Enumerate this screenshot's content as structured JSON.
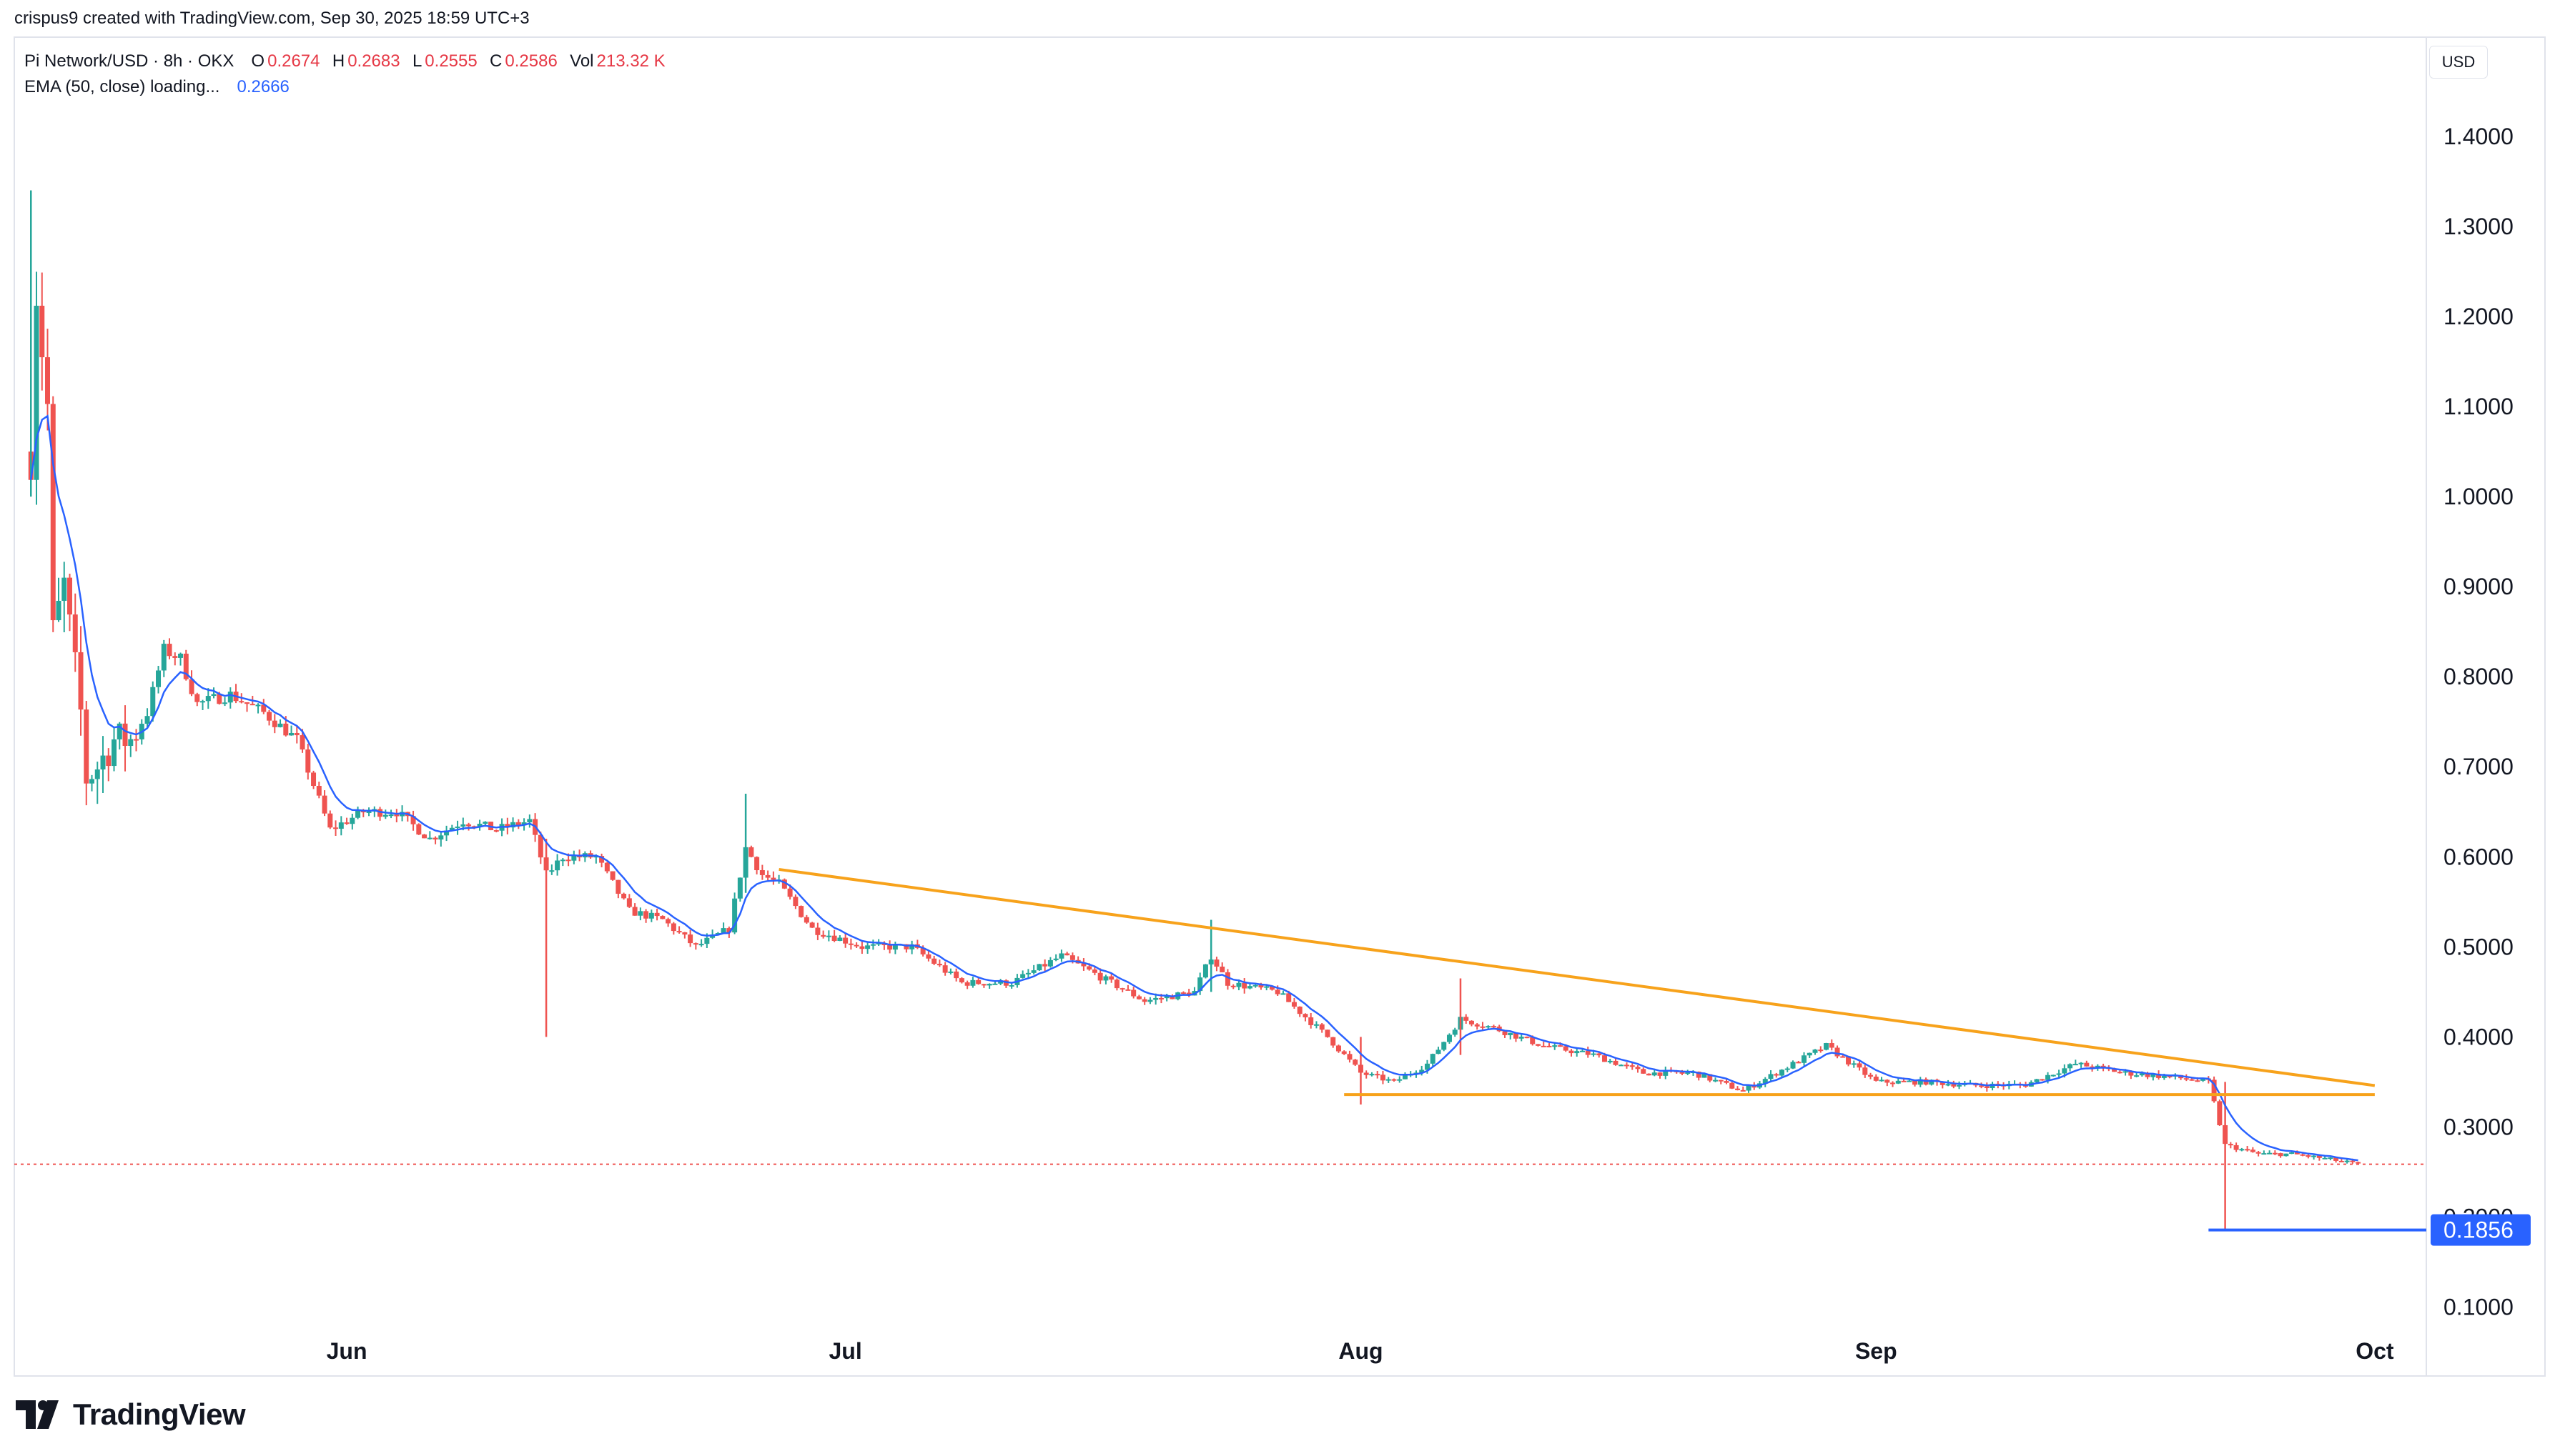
{
  "header": {
    "text": "crispus9 created with TradingView.com, Sep 30, 2025 18:59 UTC+3"
  },
  "legend": {
    "symbol": "Pi Network/USD · 8h · OKX",
    "open_label": "O",
    "open": "0.2674",
    "high_label": "H",
    "high": "0.2683",
    "low_label": "L",
    "low": "0.2555",
    "close_label": "C",
    "close": "0.2586",
    "vol_label": "Vol",
    "vol": "213.32 K",
    "ema_label": "EMA (50, close) loading...",
    "ema_value": "0.2666"
  },
  "currency_button": "USD",
  "brand": {
    "name": "TradingView",
    "icon": "tradingview-logo-icon"
  },
  "colors": {
    "up": "#26a69a",
    "down": "#ef5350",
    "ema": "#2962ff",
    "trend": "#f7a21b",
    "support": "#2962ff",
    "last_price_line": "#ef5350"
  },
  "chart_data": {
    "type": "candlestick",
    "title": "Pi Network/USD · 8h · OKX",
    "ylim": [
      0.06,
      1.48
    ],
    "y_ticks": [
      "1.4000",
      "1.3000",
      "1.2000",
      "1.1000",
      "1.0000",
      "0.9000",
      "0.8000",
      "0.7000",
      "0.6000",
      "0.5000",
      "0.4000",
      "0.3000",
      "0.2000",
      "0.1000"
    ],
    "x_ticks": [
      "Jun",
      "Jul",
      "Aug",
      "Sep",
      "Oct"
    ],
    "price_markers": [
      {
        "label": "0.1856",
        "value": 0.1856,
        "color": "#2962ff"
      }
    ],
    "last_price": 0.2586,
    "trendlines": [
      {
        "name": "descending resistance",
        "from": {
          "date": "2025-06-27",
          "price": 0.586
        },
        "to": {
          "date": "2025-10-01",
          "price": 0.346
        }
      },
      {
        "name": "horizontal support",
        "from": {
          "date": "2025-07-31",
          "price": 0.336
        },
        "to": {
          "date": "2025-10-01",
          "price": 0.336
        }
      }
    ],
    "series_close": [
      {
        "d": "2025-05-13",
        "c": 1.05
      },
      {
        "d": "2025-05-13",
        "c": 1.3
      },
      {
        "d": "2025-05-14",
        "c": 1.1
      },
      {
        "d": "2025-05-14",
        "c": 0.82
      },
      {
        "d": "2025-05-15",
        "c": 0.9
      },
      {
        "d": "2025-05-16",
        "c": 0.76
      },
      {
        "d": "2025-05-16",
        "c": 0.68
      },
      {
        "d": "2025-05-17",
        "c": 0.7
      },
      {
        "d": "2025-05-18",
        "c": 0.73
      },
      {
        "d": "2025-05-19",
        "c": 0.73
      },
      {
        "d": "2025-05-20",
        "c": 0.76
      },
      {
        "d": "2025-05-21",
        "c": 0.83
      },
      {
        "d": "2025-05-22",
        "c": 0.82
      },
      {
        "d": "2025-05-23",
        "c": 0.77
      },
      {
        "d": "2025-05-25",
        "c": 0.78
      },
      {
        "d": "2025-05-27",
        "c": 0.76
      },
      {
        "d": "2025-05-29",
        "c": 0.73
      },
      {
        "d": "2025-05-30",
        "c": 0.68
      },
      {
        "d": "2025-05-31",
        "c": 0.63
      },
      {
        "d": "2025-06-02",
        "c": 0.65
      },
      {
        "d": "2025-06-04",
        "c": 0.65
      },
      {
        "d": "2025-06-06",
        "c": 0.62
      },
      {
        "d": "2025-06-08",
        "c": 0.64
      },
      {
        "d": "2025-06-10",
        "c": 0.63
      },
      {
        "d": "2025-06-12",
        "c": 0.64
      },
      {
        "d": "2025-06-13",
        "c": 0.58
      },
      {
        "d": "2025-06-14",
        "c": 0.6
      },
      {
        "d": "2025-06-16",
        "c": 0.6
      },
      {
        "d": "2025-06-18",
        "c": 0.54
      },
      {
        "d": "2025-06-20",
        "c": 0.53
      },
      {
        "d": "2025-06-22",
        "c": 0.5
      },
      {
        "d": "2025-06-24",
        "c": 0.52
      },
      {
        "d": "2025-06-25",
        "c": 0.61
      },
      {
        "d": "2025-06-26",
        "c": 0.58
      },
      {
        "d": "2025-06-27",
        "c": 0.57
      },
      {
        "d": "2025-06-29",
        "c": 0.52
      },
      {
        "d": "2025-07-02",
        "c": 0.5
      },
      {
        "d": "2025-07-05",
        "c": 0.5
      },
      {
        "d": "2025-07-08",
        "c": 0.46
      },
      {
        "d": "2025-07-11",
        "c": 0.46
      },
      {
        "d": "2025-07-13",
        "c": 0.48
      },
      {
        "d": "2025-07-14",
        "c": 0.49
      },
      {
        "d": "2025-07-16",
        "c": 0.47
      },
      {
        "d": "2025-07-19",
        "c": 0.44
      },
      {
        "d": "2025-07-22",
        "c": 0.45
      },
      {
        "d": "2025-07-23",
        "c": 0.49
      },
      {
        "d": "2025-07-24",
        "c": 0.46
      },
      {
        "d": "2025-07-27",
        "c": 0.45
      },
      {
        "d": "2025-07-30",
        "c": 0.4
      },
      {
        "d": "2025-08-01",
        "c": 0.36
      },
      {
        "d": "2025-08-03",
        "c": 0.35
      },
      {
        "d": "2025-08-05",
        "c": 0.37
      },
      {
        "d": "2025-08-07",
        "c": 0.42
      },
      {
        "d": "2025-08-09",
        "c": 0.41
      },
      {
        "d": "2025-08-12",
        "c": 0.39
      },
      {
        "d": "2025-08-15",
        "c": 0.38
      },
      {
        "d": "2025-08-18",
        "c": 0.36
      },
      {
        "d": "2025-08-21",
        "c": 0.36
      },
      {
        "d": "2025-08-24",
        "c": 0.34
      },
      {
        "d": "2025-08-27",
        "c": 0.37
      },
      {
        "d": "2025-08-29",
        "c": 0.39
      },
      {
        "d": "2025-09-01",
        "c": 0.35
      },
      {
        "d": "2025-09-04",
        "c": 0.35
      },
      {
        "d": "2025-09-07",
        "c": 0.346
      },
      {
        "d": "2025-09-10",
        "c": 0.347
      },
      {
        "d": "2025-09-13",
        "c": 0.37
      },
      {
        "d": "2025-09-16",
        "c": 0.36
      },
      {
        "d": "2025-09-19",
        "c": 0.355
      },
      {
        "d": "2025-09-21",
        "c": 0.35
      },
      {
        "d": "2025-09-22",
        "c": 0.28
      },
      {
        "d": "2025-09-24",
        "c": 0.27
      },
      {
        "d": "2025-09-26",
        "c": 0.27
      },
      {
        "d": "2025-09-28",
        "c": 0.265
      },
      {
        "d": "2025-09-30",
        "c": 0.2586
      }
    ]
  }
}
